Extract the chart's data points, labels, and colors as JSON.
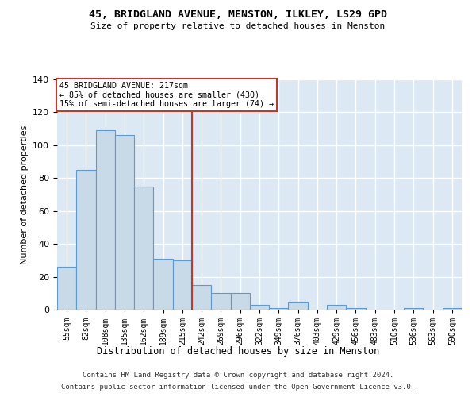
{
  "title1": "45, BRIDGLAND AVENUE, MENSTON, ILKLEY, LS29 6PD",
  "title2": "Size of property relative to detached houses in Menston",
  "xlabel": "Distribution of detached houses by size in Menston",
  "ylabel": "Number of detached properties",
  "categories": [
    "55sqm",
    "82sqm",
    "108sqm",
    "135sqm",
    "162sqm",
    "189sqm",
    "215sqm",
    "242sqm",
    "269sqm",
    "296sqm",
    "322sqm",
    "349sqm",
    "376sqm",
    "403sqm",
    "429sqm",
    "456sqm",
    "483sqm",
    "510sqm",
    "536sqm",
    "563sqm",
    "590sqm"
  ],
  "values": [
    26,
    85,
    109,
    106,
    75,
    31,
    30,
    15,
    10,
    10,
    3,
    1,
    5,
    0,
    3,
    1,
    0,
    0,
    1,
    0,
    1
  ],
  "bar_color": "#c8d9e8",
  "bar_edge_color": "#5b9bd5",
  "vline_x": 6.5,
  "vline_color": "#c0392b",
  "annotation_text": "45 BRIDGLAND AVENUE: 217sqm\n← 85% of detached houses are smaller (430)\n15% of semi-detached houses are larger (74) →",
  "annotation_box_color": "#c0392b",
  "ylim": [
    0,
    140
  ],
  "yticks": [
    0,
    20,
    40,
    60,
    80,
    100,
    120,
    140
  ],
  "bg_color": "#dce9f5",
  "footer1": "Contains HM Land Registry data © Crown copyright and database right 2024.",
  "footer2": "Contains public sector information licensed under the Open Government Licence v3.0."
}
